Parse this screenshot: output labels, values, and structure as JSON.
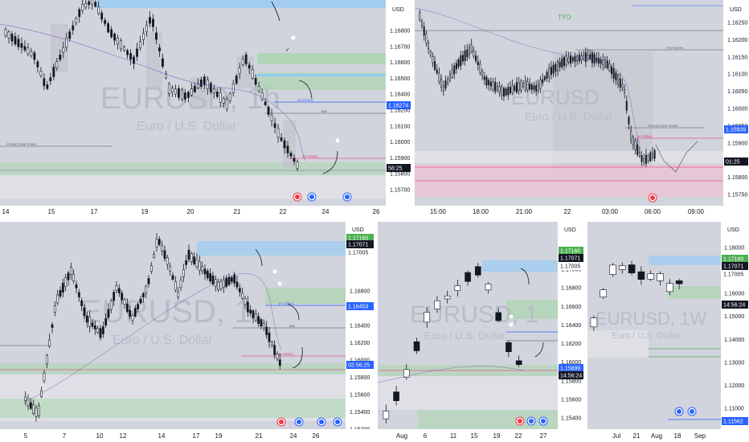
{
  "charts": [
    {
      "id": "top-left",
      "currency": "USD",
      "watermark_symbol": "EURUSD, 1h",
      "watermark_name": "Euro / U.S. Dollar",
      "y_labels": [
        "1.16800",
        "1.16700",
        "1.16600",
        "1.16500",
        "1.16400",
        "1.16200",
        "1.16100",
        "1.16000",
        "1.15900",
        "1.15800",
        "1.15700"
      ],
      "x_labels": [
        "14",
        "15",
        "17",
        "19",
        "20",
        "21",
        "22",
        "24",
        "26"
      ],
      "price_tag": "1.16274",
      "price_tag_partial": "58:25",
      "annotations": {
        "structure": "STRUCTURE POINT",
        "small1": "5/M",
        "small2": "1H STRUC",
        "small3": "4H STRUC"
      }
    },
    {
      "id": "top-right",
      "currency": "USD",
      "watermark_symbol": "EURUSD",
      "watermark_name": "Euro / U.S. Dollar",
      "y_labels": [
        "1.16250",
        "1.16200",
        "1.16150",
        "1.16100",
        "1.16050",
        "1.16000",
        "1.15950",
        "1.15900",
        "1.15850",
        "1.15800",
        "1.15750"
      ],
      "x_labels": [
        "15:00",
        "18:00",
        "21:00",
        "22",
        "03:00",
        "06:00",
        "09:00"
      ],
      "price_tag": "1.15939",
      "price_tag_time": "01:25",
      "session": "TYO",
      "annotations": {
        "structure": "STRUCTURE POINT",
        "top": "TYO HIGHS",
        "pink": "1H STRUC"
      }
    },
    {
      "id": "bottom-left",
      "currency": "USD",
      "watermark_symbol": "EURUSD, 1",
      "watermark_name": "Euro / U.S. Dollar",
      "y_labels": [
        "1.16800",
        "1.16600",
        "1.16400",
        "1.16200",
        "1.16000",
        "1.15800",
        "1.15600",
        "1.15400",
        "1.15200"
      ],
      "x_labels": [
        "5",
        "7",
        "10",
        "12",
        "14",
        "17",
        "19",
        "21",
        "24",
        "26"
      ],
      "tags": [
        "1.17160",
        "1.17071",
        "1.17005",
        "1.16453"
      ],
      "price_tag_time": "02:56:25",
      "annotations": {
        "small1": "1H STRUC",
        "small2": "4H STRUC",
        "small3": "5/M"
      }
    },
    {
      "id": "bottom-mid",
      "currency": "USD",
      "watermark_symbol": "EURUSD, 1",
      "watermark_name": "Euro / U.S. Dollar",
      "y_labels": [
        "1.17200",
        "1.17000",
        "1.16800",
        "1.16600",
        "1.16400",
        "1.16200",
        "1.16000",
        "1.15800",
        "1.15600",
        "1.15400"
      ],
      "x_labels": [
        "Aug",
        "6",
        "11",
        "15",
        "19",
        "22",
        "27"
      ],
      "tags": [
        "1.17160",
        "1.17071",
        "1.17005",
        "1.15899"
      ],
      "price_tag_time": "14:56:24"
    },
    {
      "id": "bottom-right",
      "currency": "USD",
      "watermark_symbol": "EURUSD, 1W",
      "watermark_name": "Euro / U.S. Dollar",
      "y_labels": [
        "1.18000",
        "1.17000",
        "1.16000",
        "1.15000",
        "1.14000",
        "1.13000",
        "1.12000",
        "1.11000"
      ],
      "x_labels": [
        "Jul",
        "21",
        "Aug",
        "18",
        "Sep"
      ],
      "tags": [
        "1.17160",
        "1.17071",
        "1.17005",
        "1.11562"
      ],
      "price_tag_time": "14:56:24"
    }
  ],
  "colors": {
    "panel_bg": "#d1d4dc",
    "candle": "#131722",
    "green_zone": "#a5d6a7",
    "blue_zone": "#90caf9",
    "pink_zone": "#f8bbd0",
    "blue_line": "#2962ff",
    "red_tag": "#f23645",
    "green_tag": "#4caf50"
  }
}
